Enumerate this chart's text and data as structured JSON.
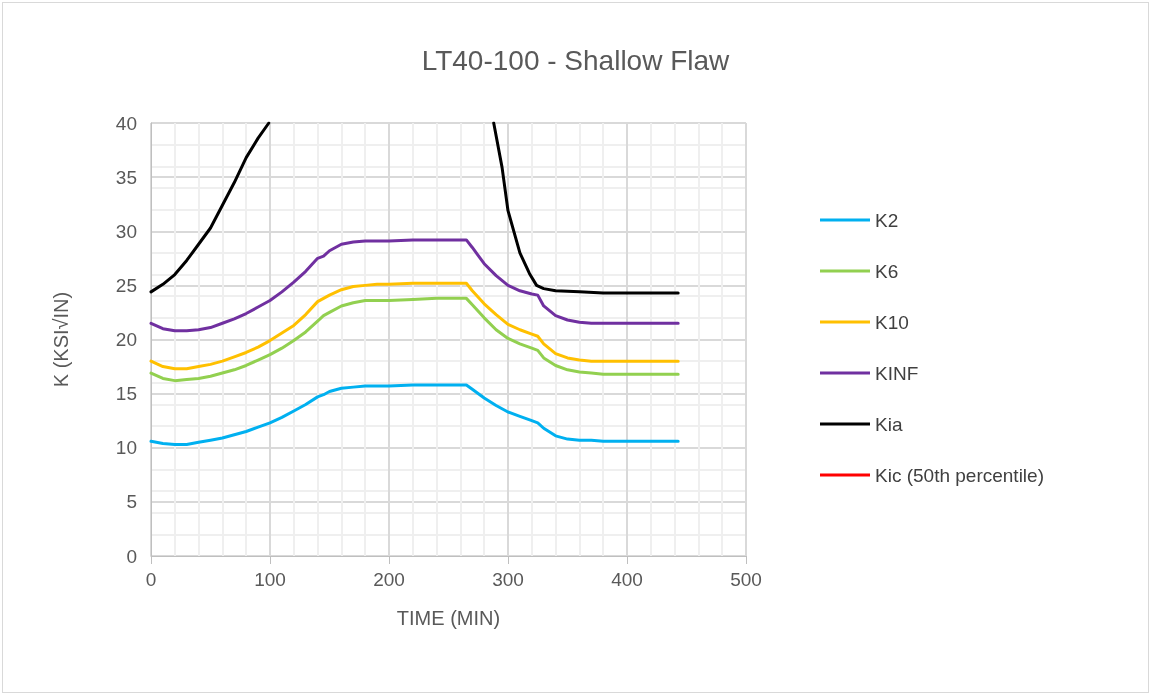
{
  "chart_data": {
    "type": "line",
    "title": "LT40-100 - Shallow Flaw",
    "xlabel": "TIME (MIN)",
    "ylabel": "K (KSI√IN)",
    "x": [
      0,
      10,
      20,
      30,
      40,
      50,
      60,
      70,
      80,
      90,
      100,
      110,
      120,
      130,
      140,
      145,
      150,
      160,
      170,
      180,
      190,
      200,
      220,
      240,
      260,
      265,
      270,
      280,
      290,
      300,
      310,
      320,
      325,
      330,
      340,
      350,
      360,
      370,
      380,
      400,
      420,
      443
    ],
    "series": [
      {
        "name": "K2",
        "color": "#00b0f0",
        "values": [
          10.6,
          10.4,
          10.3,
          10.3,
          10.5,
          10.7,
          10.9,
          11.2,
          11.5,
          11.9,
          12.3,
          12.8,
          13.4,
          14.0,
          14.7,
          14.9,
          15.2,
          15.5,
          15.6,
          15.7,
          15.7,
          15.7,
          15.8,
          15.8,
          15.8,
          15.8,
          15.4,
          14.6,
          13.9,
          13.3,
          12.9,
          12.5,
          12.3,
          11.8,
          11.1,
          10.8,
          10.7,
          10.7,
          10.6,
          10.6,
          10.6,
          10.6
        ]
      },
      {
        "name": "K6",
        "color": "#92d050",
        "values": [
          16.9,
          16.4,
          16.2,
          16.3,
          16.4,
          16.6,
          16.9,
          17.2,
          17.6,
          18.1,
          18.6,
          19.2,
          19.9,
          20.7,
          21.7,
          22.2,
          22.5,
          23.1,
          23.4,
          23.6,
          23.6,
          23.6,
          23.7,
          23.8,
          23.8,
          23.8,
          23.2,
          22.0,
          20.9,
          20.1,
          19.6,
          19.2,
          19.0,
          18.3,
          17.6,
          17.2,
          17.0,
          16.9,
          16.8,
          16.8,
          16.8,
          16.8
        ]
      },
      {
        "name": "K10",
        "color": "#ffc000",
        "values": [
          18.0,
          17.5,
          17.3,
          17.3,
          17.5,
          17.7,
          18.0,
          18.4,
          18.8,
          19.3,
          19.9,
          20.6,
          21.3,
          22.3,
          23.5,
          23.8,
          24.1,
          24.6,
          24.9,
          25.0,
          25.1,
          25.1,
          25.2,
          25.2,
          25.2,
          25.2,
          24.5,
          23.3,
          22.3,
          21.4,
          20.9,
          20.5,
          20.3,
          19.6,
          18.7,
          18.3,
          18.1,
          18.0,
          18.0,
          18.0,
          18.0,
          18.0
        ]
      },
      {
        "name": "KINF",
        "color": "#7030a0",
        "values": [
          21.5,
          21.0,
          20.8,
          20.8,
          20.9,
          21.1,
          21.5,
          21.9,
          22.4,
          23.0,
          23.6,
          24.4,
          25.3,
          26.3,
          27.5,
          27.7,
          28.2,
          28.8,
          29.0,
          29.1,
          29.1,
          29.1,
          29.2,
          29.2,
          29.2,
          29.2,
          28.5,
          27.0,
          25.9,
          25.0,
          24.5,
          24.2,
          24.1,
          23.1,
          22.2,
          21.8,
          21.6,
          21.5,
          21.5,
          21.5,
          21.5,
          21.5
        ]
      },
      {
        "name": "Kia",
        "color": "#000000",
        "x": [
          0,
          10,
          20,
          30,
          40,
          50,
          60,
          70,
          80,
          90,
          99,
          200,
          288,
          295,
          300,
          310,
          318,
          324,
          330,
          340,
          360,
          380,
          443
        ],
        "values": [
          24.4,
          25.1,
          26.0,
          27.3,
          28.8,
          30.3,
          32.4,
          34.5,
          36.8,
          38.6,
          40,
          null,
          40,
          35.9,
          31.9,
          28.0,
          26.1,
          25.0,
          24.7,
          24.5,
          24.4,
          24.3,
          24.3
        ]
      },
      {
        "name": "Kic (50th percentile)",
        "color": "#ff0000",
        "values": [
          null,
          null,
          null,
          null,
          null,
          null,
          null,
          null,
          null,
          null,
          null,
          null,
          null,
          null,
          null,
          null,
          null,
          null,
          null,
          null,
          null,
          null,
          null,
          null,
          null,
          null,
          null,
          null,
          null,
          null,
          null,
          null,
          null,
          null,
          null,
          null,
          null,
          null,
          null,
          null,
          null,
          null
        ]
      }
    ],
    "xlim": [
      0,
      500
    ],
    "xticks": [
      0,
      100,
      200,
      300,
      400,
      500
    ],
    "ylim": [
      0,
      40
    ],
    "yticks": [
      0,
      5,
      10,
      15,
      20,
      25,
      30,
      35,
      40
    ],
    "grid": true,
    "legend": "right",
    "marker": "none",
    "line_style": "solid"
  }
}
